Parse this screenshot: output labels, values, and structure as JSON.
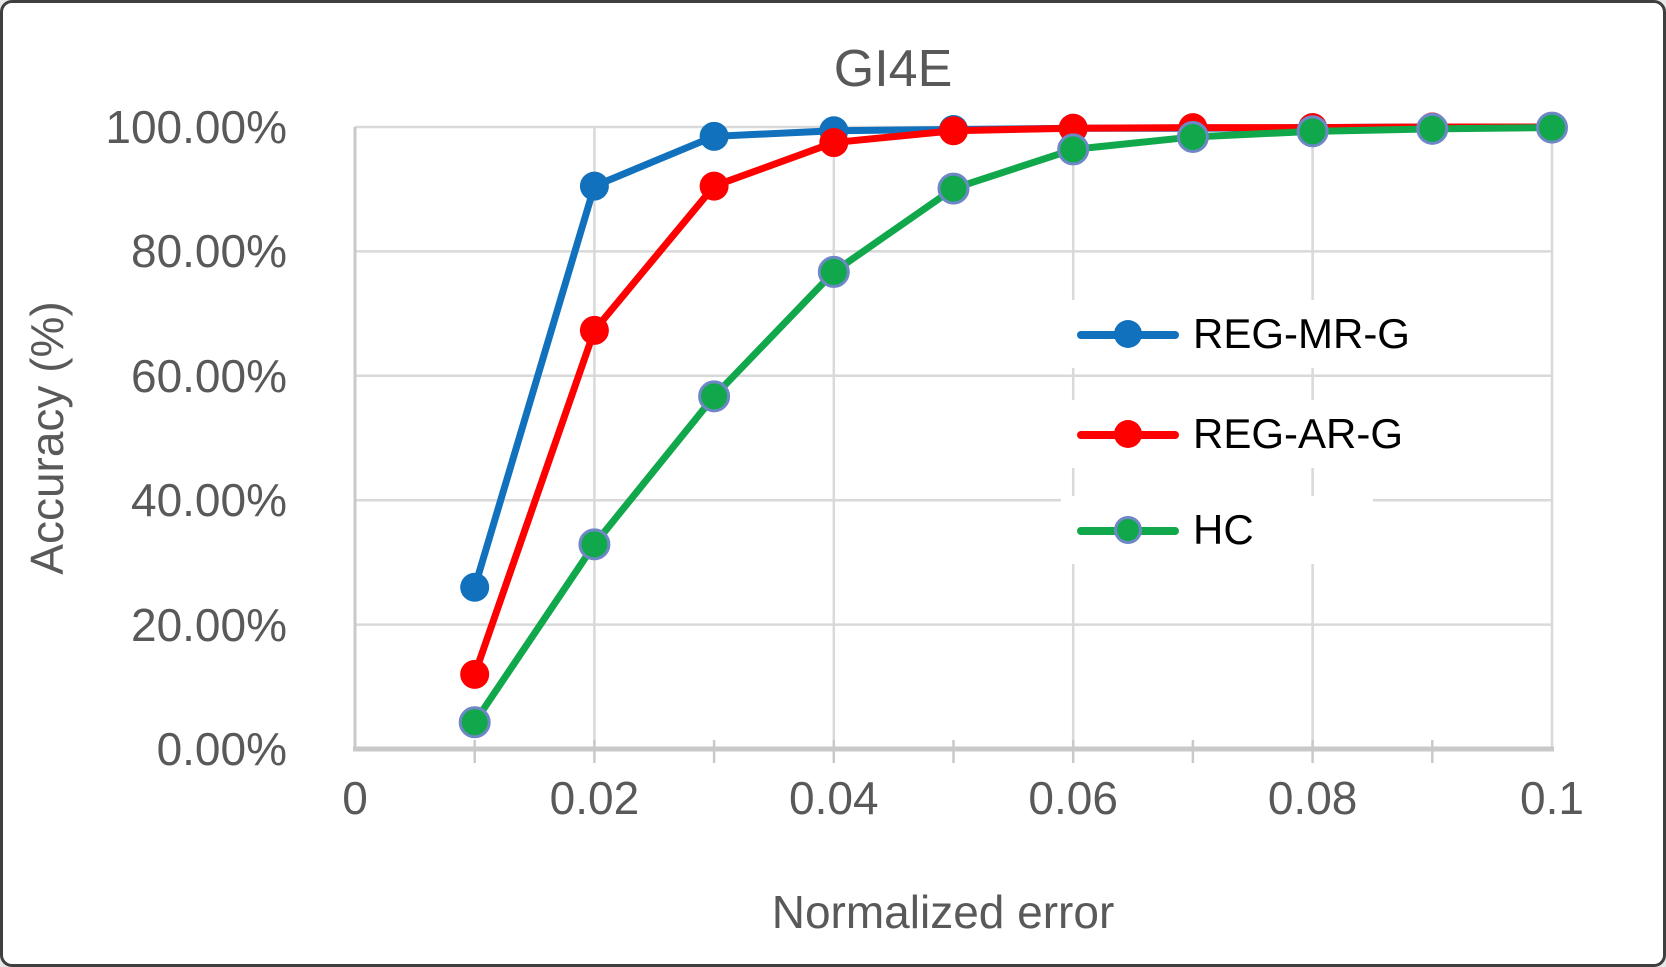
{
  "chart": {
    "title": "GI4E",
    "x_axis_title": "Normalized error",
    "y_axis_title": "Accuracy (%)"
  },
  "chart_data": {
    "type": "line",
    "title": "GI4E",
    "xlabel": "Normalized error",
    "ylabel": "Accuracy (%)",
    "xlim": [
      0,
      0.1
    ],
    "ylim": [
      0,
      100
    ],
    "grid": true,
    "legend_position": "inside-right",
    "x": [
      0.01,
      0.02,
      0.03,
      0.04,
      0.05,
      0.06,
      0.07,
      0.08,
      0.09,
      0.1
    ],
    "series": [
      {
        "name": "REG-MR-G",
        "color": "#1171BD",
        "marker_outline": "none",
        "values": [
          26.0,
          90.5,
          98.5,
          99.4,
          99.6,
          99.8,
          99.8,
          99.9,
          100.0,
          100.0
        ]
      },
      {
        "name": "REG-AR-G",
        "color": "#FF0000",
        "marker_outline": "none",
        "values": [
          12.0,
          67.3,
          90.5,
          97.5,
          99.4,
          99.8,
          99.9,
          99.9,
          100.0,
          100.0
        ]
      },
      {
        "name": "HC",
        "color": "#11A84C",
        "marker_outline": "#6E87C6",
        "values": [
          4.3,
          32.9,
          56.7,
          76.7,
          90.1,
          96.4,
          98.4,
          99.3,
          99.7,
          99.9
        ]
      }
    ],
    "x_tick_labels": [
      "0",
      "0.02",
      "0.04",
      "0.06",
      "0.08",
      "0.1"
    ],
    "x_major_ticks": [
      0,
      0.02,
      0.04,
      0.06,
      0.08,
      0.1
    ],
    "x_minor_tick_step": 0.01,
    "y_tick_labels": [
      "0.00%",
      "20.00%",
      "40.00%",
      "60.00%",
      "80.00%",
      "100.00%"
    ],
    "y_major_ticks": [
      0,
      20,
      40,
      60,
      80,
      100
    ]
  },
  "colors": {
    "gridline": "#D9D9D9",
    "axis_line": "#C9C9C9",
    "tick_text": "#595959",
    "title_text": "#595959",
    "legend_text": "#000000",
    "background": "#FFFFFF"
  }
}
